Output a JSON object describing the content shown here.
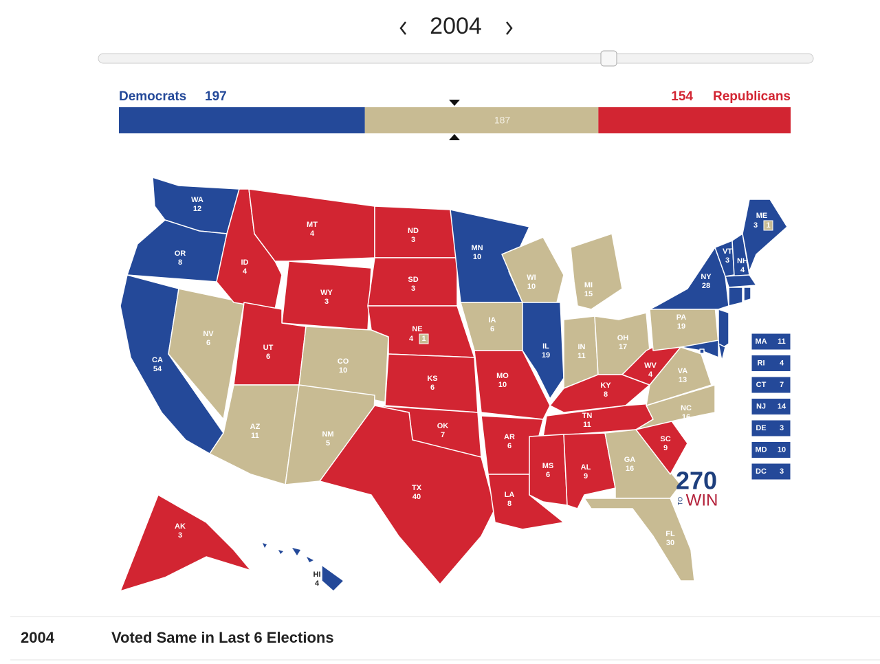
{
  "header": {
    "year": "2004"
  },
  "tally": {
    "dem_label": "Democrats",
    "dem": 197,
    "tossup": 187,
    "rep": 154,
    "rep_label": "Republicans"
  },
  "party_colors": {
    "D": "#244999",
    "R": "#d22532",
    "T": "#c8bb93"
  },
  "states": [
    {
      "abbr": "WA",
      "votes": 12,
      "party": "D"
    },
    {
      "abbr": "OR",
      "votes": 8,
      "party": "D"
    },
    {
      "abbr": "CA",
      "votes": 54,
      "party": "D"
    },
    {
      "abbr": "NV",
      "votes": 6,
      "party": "T"
    },
    {
      "abbr": "ID",
      "votes": 4,
      "party": "R"
    },
    {
      "abbr": "MT",
      "votes": 4,
      "party": "R"
    },
    {
      "abbr": "WY",
      "votes": 3,
      "party": "R"
    },
    {
      "abbr": "UT",
      "votes": 6,
      "party": "R"
    },
    {
      "abbr": "CO",
      "votes": 10,
      "party": "T"
    },
    {
      "abbr": "AZ",
      "votes": 11,
      "party": "T"
    },
    {
      "abbr": "NM",
      "votes": 5,
      "party": "T"
    },
    {
      "abbr": "ND",
      "votes": 3,
      "party": "R"
    },
    {
      "abbr": "SD",
      "votes": 3,
      "party": "R"
    },
    {
      "abbr": "NE",
      "votes": 4,
      "party": "R",
      "split_votes": 1,
      "split_party": "T"
    },
    {
      "abbr": "KS",
      "votes": 6,
      "party": "R"
    },
    {
      "abbr": "OK",
      "votes": 7,
      "party": "R"
    },
    {
      "abbr": "TX",
      "votes": 40,
      "party": "R"
    },
    {
      "abbr": "MN",
      "votes": 10,
      "party": "D"
    },
    {
      "abbr": "IA",
      "votes": 6,
      "party": "T"
    },
    {
      "abbr": "MO",
      "votes": 10,
      "party": "R"
    },
    {
      "abbr": "AR",
      "votes": 6,
      "party": "R"
    },
    {
      "abbr": "LA",
      "votes": 8,
      "party": "R"
    },
    {
      "abbr": "WI",
      "votes": 10,
      "party": "T"
    },
    {
      "abbr": "IL",
      "votes": 19,
      "party": "D"
    },
    {
      "abbr": "MI",
      "votes": 15,
      "party": "T"
    },
    {
      "abbr": "IN",
      "votes": 11,
      "party": "T"
    },
    {
      "abbr": "OH",
      "votes": 17,
      "party": "T"
    },
    {
      "abbr": "KY",
      "votes": 8,
      "party": "R"
    },
    {
      "abbr": "TN",
      "votes": 11,
      "party": "R"
    },
    {
      "abbr": "MS",
      "votes": 6,
      "party": "R"
    },
    {
      "abbr": "AL",
      "votes": 9,
      "party": "R"
    },
    {
      "abbr": "GA",
      "votes": 16,
      "party": "T"
    },
    {
      "abbr": "FL",
      "votes": 30,
      "party": "T"
    },
    {
      "abbr": "SC",
      "votes": 9,
      "party": "R"
    },
    {
      "abbr": "NC",
      "votes": 16,
      "party": "T"
    },
    {
      "abbr": "VA",
      "votes": 13,
      "party": "T"
    },
    {
      "abbr": "WV",
      "votes": 4,
      "party": "R"
    },
    {
      "abbr": "PA",
      "votes": 19,
      "party": "T"
    },
    {
      "abbr": "NY",
      "votes": 28,
      "party": "D"
    },
    {
      "abbr": "VT",
      "votes": 3,
      "party": "D"
    },
    {
      "abbr": "NH",
      "votes": 4,
      "party": "D"
    },
    {
      "abbr": "ME",
      "votes": 3,
      "party": "D",
      "split_votes": 1,
      "split_party": "T"
    },
    {
      "abbr": "MA",
      "votes": 11,
      "party": "D"
    },
    {
      "abbr": "RI",
      "votes": 4,
      "party": "D"
    },
    {
      "abbr": "CT",
      "votes": 7,
      "party": "D"
    },
    {
      "abbr": "NJ",
      "votes": 14,
      "party": "D"
    },
    {
      "abbr": "DE",
      "votes": 3,
      "party": "D"
    },
    {
      "abbr": "MD",
      "votes": 10,
      "party": "D"
    },
    {
      "abbr": "DC",
      "votes": 3,
      "party": "D"
    },
    {
      "abbr": "AK",
      "votes": 3,
      "party": "R"
    },
    {
      "abbr": "HI",
      "votes": 4,
      "party": "D"
    }
  ],
  "logo": {
    "number": "270",
    "small": "TO",
    "word": "WIN"
  },
  "footer": {
    "year": "2004",
    "text": "Voted Same in Last 6 Elections"
  }
}
